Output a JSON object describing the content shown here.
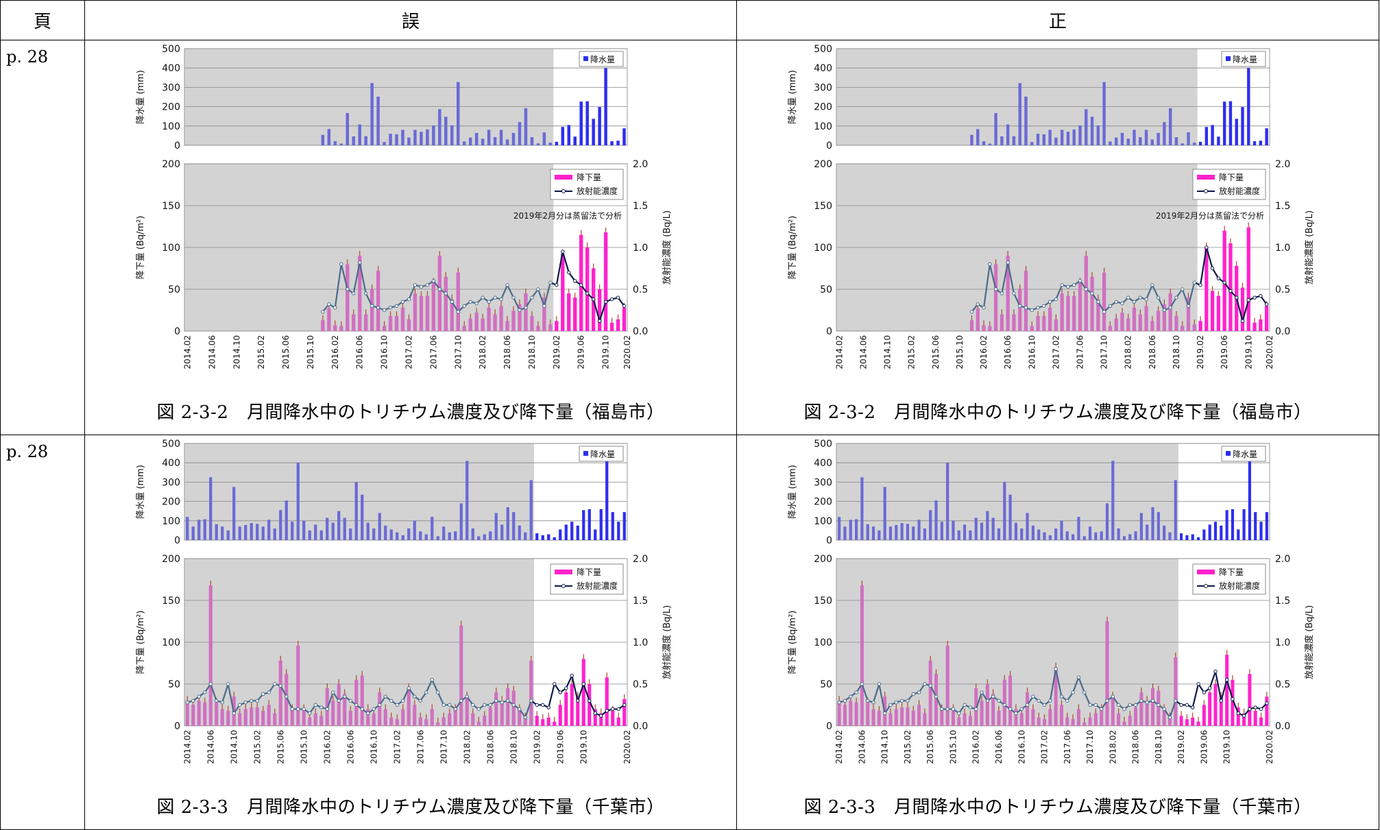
{
  "header": {
    "page": "頁",
    "wrong": "誤",
    "correct": "正"
  },
  "ticks": [
    "2014.02",
    "2014.06",
    "2014.10",
    "2015.02",
    "2015.06",
    "2015.10",
    "2016.02",
    "2016.06",
    "2016.10",
    "2017.02",
    "2017.06",
    "2017.10",
    "2018.02",
    "2018.06",
    "2018.10",
    "2019.02",
    "2019.06",
    "2019.10",
    "2020.02"
  ],
  "precip_axis": {
    "label": "降水量 (mm)",
    "ticks": [
      "500",
      "400",
      "300",
      "200",
      "100",
      "0"
    ]
  },
  "dep_axis": {
    "label": "降下量 (Bq/m²)",
    "ticks": [
      "200",
      "150",
      "100",
      "50",
      "0"
    ]
  },
  "conc_axis": {
    "label": "放射能濃度 (Bq/L)",
    "ticks": [
      "2.0",
      "1.5",
      "1.0",
      "0.5",
      "0.0"
    ]
  },
  "legend": {
    "precip": "降水量",
    "dep": "降下量",
    "conc": "放射能濃度"
  },
  "colors": {
    "precip_old": "#6a6ad6",
    "precip_new": "#2e2ef0",
    "dep_old": "#d070c0",
    "dep_new": "#ff22cc",
    "conc_old": "#4a6a8a",
    "conc_new": "#0a1a4a"
  },
  "rows": [
    {
      "page": "p. 28",
      "wrong_caption": "図 2-3-2　月間降水中のトリチウム濃度及び降下量（福島市）",
      "correct_caption": "図 2-3-2　月間降水中のトリチウム濃度及び降下量（福島市）",
      "note": "2019年2月分は蒸留法で分析"
    },
    {
      "page": "p. 28",
      "wrong_caption": "図 2-3-3　月間降水中のトリチウム濃度及び降下量（千葉市）",
      "correct_caption": "図 2-3-3　月間降水中のトリチウム濃度及び降下量（千葉市）",
      "note": ""
    }
  ],
  "chart_data": [
    {
      "type": "bar",
      "title": "福島市",
      "x_start": "2014.02",
      "x_end": "2020.02",
      "shaded_until": "2019.01",
      "note": "2019年2月分は蒸留法で分析",
      "precipitation_mm": [
        0,
        0,
        0,
        0,
        0,
        0,
        0,
        0,
        0,
        0,
        0,
        0,
        0,
        0,
        0,
        0,
        0,
        0,
        0,
        0,
        0,
        0,
        54,
        84,
        21,
        9,
        167,
        46,
        108,
        47,
        322,
        252,
        17,
        60,
        57,
        80,
        40,
        80,
        70,
        82,
        103,
        187,
        148,
        103,
        327,
        20,
        40,
        64,
        34,
        80,
        42,
        80,
        30,
        64,
        120,
        192,
        42,
        10,
        67,
        14,
        18,
        95,
        105,
        45,
        226,
        228,
        137,
        198,
        400,
        21,
        24,
        88
      ],
      "deposition_Bq_m2": [
        0,
        0,
        0,
        0,
        0,
        0,
        0,
        0,
        0,
        0,
        0,
        0,
        0,
        0,
        0,
        0,
        0,
        0,
        0,
        0,
        0,
        0,
        13,
        27,
        7,
        6,
        80,
        20,
        90,
        20,
        50,
        72,
        6,
        18,
        18,
        28,
        14,
        45,
        42,
        42,
        58,
        90,
        65,
        38,
        70,
        6,
        15,
        22,
        15,
        28,
        20,
        30,
        12,
        24,
        32,
        45,
        18,
        6,
        40,
        8,
        12,
        92,
        45,
        40,
        115,
        100,
        75,
        50,
        118,
        10,
        14,
        28
      ],
      "concentration_Bq_L": [
        null,
        null,
        null,
        null,
        null,
        null,
        null,
        null,
        null,
        null,
        null,
        null,
        null,
        null,
        null,
        null,
        null,
        null,
        null,
        null,
        null,
        null,
        0.23,
        0.32,
        0.28,
        0.8,
        0.5,
        0.45,
        0.82,
        0.45,
        0.3,
        0.28,
        0.25,
        0.28,
        0.3,
        0.35,
        0.38,
        0.55,
        0.53,
        0.55,
        0.6,
        0.5,
        0.45,
        0.35,
        0.23,
        0.3,
        0.35,
        0.33,
        0.4,
        0.35,
        0.4,
        0.38,
        0.55,
        0.4,
        0.25,
        0.28,
        0.4,
        0.5,
        0.3,
        0.58,
        0.55,
        0.95,
        0.7,
        0.6,
        0.55,
        0.45,
        0.38,
        0.12,
        0.35,
        0.38,
        0.4,
        0.3
      ]
    },
    {
      "type": "bar",
      "title": "福島市（正）",
      "x_start": "2014.02",
      "x_end": "2020.02",
      "shaded_until": "2019.01",
      "note": "2019年2月分は蒸留法で分析",
      "precipitation_mm": [
        0,
        0,
        0,
        0,
        0,
        0,
        0,
        0,
        0,
        0,
        0,
        0,
        0,
        0,
        0,
        0,
        0,
        0,
        0,
        0,
        0,
        0,
        54,
        84,
        21,
        9,
        167,
        46,
        108,
        47,
        322,
        252,
        17,
        60,
        57,
        80,
        40,
        80,
        70,
        82,
        103,
        187,
        148,
        103,
        327,
        20,
        40,
        64,
        34,
        80,
        42,
        80,
        30,
        64,
        120,
        192,
        42,
        10,
        67,
        14,
        18,
        95,
        105,
        45,
        226,
        228,
        137,
        198,
        400,
        21,
        24,
        88
      ],
      "deposition_Bq_m2": [
        0,
        0,
        0,
        0,
        0,
        0,
        0,
        0,
        0,
        0,
        0,
        0,
        0,
        0,
        0,
        0,
        0,
        0,
        0,
        0,
        0,
        0,
        13,
        27,
        7,
        6,
        80,
        20,
        90,
        20,
        50,
        72,
        6,
        18,
        18,
        28,
        14,
        45,
        42,
        42,
        58,
        90,
        65,
        38,
        70,
        6,
        15,
        22,
        15,
        28,
        20,
        30,
        12,
        24,
        32,
        45,
        18,
        6,
        40,
        8,
        12,
        100,
        48,
        42,
        120,
        105,
        78,
        52,
        124,
        10,
        14,
        30
      ],
      "concentration_Bq_L": [
        null,
        null,
        null,
        null,
        null,
        null,
        null,
        null,
        null,
        null,
        null,
        null,
        null,
        null,
        null,
        null,
        null,
        null,
        null,
        null,
        null,
        null,
        0.23,
        0.32,
        0.28,
        0.8,
        0.5,
        0.45,
        0.82,
        0.45,
        0.3,
        0.28,
        0.25,
        0.28,
        0.3,
        0.35,
        0.38,
        0.55,
        0.53,
        0.55,
        0.6,
        0.5,
        0.45,
        0.35,
        0.23,
        0.3,
        0.35,
        0.33,
        0.4,
        0.35,
        0.4,
        0.38,
        0.55,
        0.4,
        0.25,
        0.28,
        0.4,
        0.5,
        0.3,
        0.58,
        0.55,
        1.0,
        0.75,
        0.63,
        0.58,
        0.48,
        0.4,
        0.12,
        0.37,
        0.4,
        0.42,
        0.32
      ]
    },
    {
      "type": "bar",
      "title": "千葉市",
      "x_start": "2014.02",
      "x_end": "2020.02",
      "shaded_until": "2019.01",
      "precipitation_mm": [
        120,
        70,
        105,
        108,
        325,
        82,
        70,
        50,
        275,
        70,
        78,
        88,
        84,
        70,
        105,
        60,
        155,
        205,
        95,
        400,
        100,
        50,
        80,
        50,
        115,
        90,
        150,
        115,
        60,
        300,
        235,
        90,
        60,
        140,
        75,
        55,
        40,
        25,
        60,
        100,
        45,
        30,
        120,
        20,
        70,
        40,
        45,
        190,
        410,
        60,
        20,
        30,
        45,
        140,
        80,
        170,
        145,
        75,
        40,
        310,
        35,
        25,
        30,
        15,
        55,
        80,
        95,
        75,
        155,
        160,
        55,
        160,
        460,
        145,
        95,
        145
      ],
      "deposition_Bq_m2": [
        30,
        25,
        30,
        28,
        168,
        28,
        20,
        18,
        35,
        15,
        20,
        22,
        22,
        18,
        25,
        15,
        78,
        62,
        20,
        96,
        20,
        10,
        15,
        12,
        45,
        30,
        50,
        38,
        18,
        55,
        60,
        20,
        15,
        40,
        20,
        10,
        8,
        20,
        45,
        25,
        10,
        8,
        20,
        4,
        10,
        15,
        20,
        120,
        35,
        15,
        5,
        12,
        22,
        40,
        30,
        45,
        42,
        20,
        10,
        78,
        12,
        8,
        10,
        5,
        25,
        40,
        50,
        35,
        80,
        50,
        20,
        15,
        58,
        18,
        10,
        32
      ],
      "concentration_Bq_L": [
        0.28,
        0.3,
        0.35,
        0.4,
        0.5,
        0.3,
        0.28,
        0.5,
        0.15,
        0.25,
        0.28,
        0.3,
        0.3,
        0.38,
        0.4,
        0.5,
        0.48,
        0.35,
        0.2,
        0.2,
        0.2,
        0.15,
        0.25,
        0.22,
        0.2,
        0.4,
        0.3,
        0.35,
        0.3,
        0.25,
        0.2,
        0.15,
        0.2,
        0.25,
        0.35,
        0.3,
        0.25,
        0.3,
        0.45,
        0.35,
        0.3,
        0.4,
        0.55,
        0.4,
        0.25,
        0.25,
        0.2,
        0.3,
        0.35,
        0.25,
        0.2,
        0.25,
        0.25,
        0.3,
        0.28,
        0.3,
        0.25,
        0.2,
        0.1,
        0.3,
        0.25,
        0.25,
        0.22,
        0.5,
        0.4,
        0.45,
        0.6,
        0.3,
        0.5,
        0.3,
        0.15,
        0.12,
        0.18,
        0.2,
        0.2,
        0.25
      ]
    },
    {
      "type": "bar",
      "title": "千葉市（正）",
      "x_start": "2014.02",
      "x_end": "2020.02",
      "shaded_until": "2019.01",
      "precipitation_mm": [
        120,
        70,
        105,
        108,
        325,
        82,
        70,
        50,
        275,
        70,
        78,
        88,
        84,
        70,
        105,
        60,
        155,
        205,
        95,
        400,
        100,
        50,
        80,
        50,
        115,
        90,
        150,
        115,
        60,
        300,
        235,
        90,
        60,
        140,
        75,
        55,
        40,
        25,
        60,
        100,
        45,
        30,
        120,
        20,
        70,
        40,
        45,
        190,
        410,
        60,
        20,
        30,
        45,
        140,
        80,
        170,
        145,
        75,
        40,
        310,
        35,
        25,
        30,
        15,
        55,
        80,
        95,
        75,
        155,
        160,
        55,
        160,
        460,
        145,
        95,
        145
      ],
      "deposition_Bq_m2": [
        30,
        25,
        30,
        28,
        168,
        28,
        20,
        18,
        35,
        15,
        20,
        22,
        22,
        18,
        25,
        15,
        78,
        62,
        20,
        96,
        20,
        10,
        15,
        12,
        45,
        30,
        50,
        38,
        18,
        55,
        60,
        20,
        15,
        40,
        20,
        10,
        8,
        20,
        70,
        25,
        10,
        8,
        20,
        4,
        10,
        15,
        20,
        125,
        35,
        15,
        5,
        12,
        22,
        40,
        30,
        45,
        42,
        20,
        10,
        82,
        12,
        8,
        10,
        5,
        25,
        40,
        50,
        35,
        85,
        55,
        22,
        15,
        62,
        18,
        10,
        35
      ],
      "concentration_Bq_L": [
        0.28,
        0.3,
        0.35,
        0.4,
        0.5,
        0.3,
        0.28,
        0.5,
        0.15,
        0.25,
        0.28,
        0.3,
        0.3,
        0.38,
        0.4,
        0.5,
        0.48,
        0.35,
        0.2,
        0.2,
        0.2,
        0.15,
        0.25,
        0.22,
        0.2,
        0.4,
        0.3,
        0.35,
        0.3,
        0.25,
        0.2,
        0.15,
        0.2,
        0.25,
        0.35,
        0.3,
        0.25,
        0.3,
        0.68,
        0.35,
        0.3,
        0.4,
        0.58,
        0.4,
        0.25,
        0.25,
        0.2,
        0.3,
        0.35,
        0.25,
        0.2,
        0.25,
        0.25,
        0.3,
        0.28,
        0.3,
        0.25,
        0.2,
        0.1,
        0.3,
        0.25,
        0.25,
        0.22,
        0.5,
        0.4,
        0.45,
        0.65,
        0.3,
        0.55,
        0.32,
        0.15,
        0.12,
        0.2,
        0.22,
        0.2,
        0.27
      ]
    }
  ]
}
